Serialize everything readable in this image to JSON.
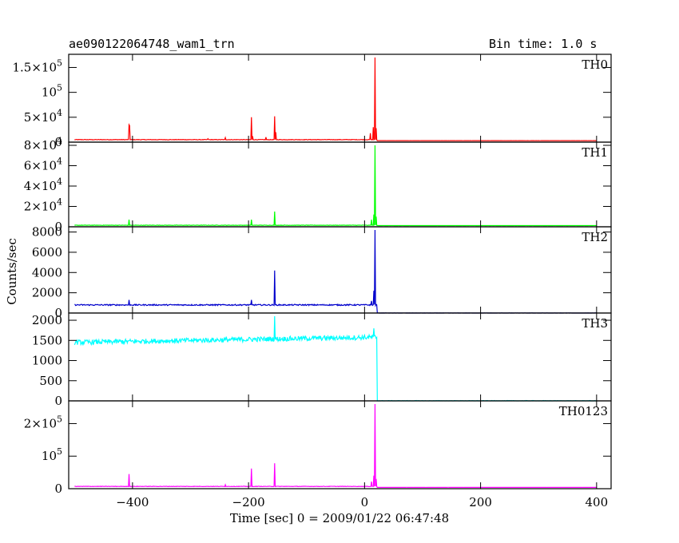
{
  "header": {
    "title": "ae090122064748_wam1_trn",
    "bin_time": "Bin time: 1.0 s"
  },
  "axes": {
    "xlabel": "Time [sec] 0 = 2009/01/22 06:47:48",
    "ylabel": "Counts/sec"
  },
  "colors": {
    "TH0": "#ff0000",
    "TH1": "#00ff00",
    "TH2": "#0000cc",
    "TH3": "#00ffff",
    "TH0123": "#ff00ff",
    "axes": "#000000"
  },
  "chart_data": {
    "type": "line",
    "xlabel": "Time [sec] 0 = 2009/01/22 06:47:48",
    "ylabel": "Counts/sec",
    "xlim": [
      -510,
      425
    ],
    "x_ticks": [
      -400,
      -200,
      0,
      200,
      400
    ],
    "panels": [
      {
        "name": "TH0",
        "color": "#ff0000",
        "ylim": [
          0,
          170000
        ],
        "y_ticks": [
          {
            "value": 0,
            "label": "0"
          },
          {
            "value": 50000,
            "label": "5×10",
            "exp": "4"
          },
          {
            "value": 100000,
            "label": "10",
            "exp": "5"
          },
          {
            "value": 150000,
            "label": "1.5×10",
            "exp": "5"
          }
        ],
        "baseline_before": 5000,
        "baseline_after": 3000,
        "noise": 500,
        "spikes": [
          {
            "t": -406,
            "v": 35000
          },
          {
            "t": -405,
            "v": 33000
          },
          {
            "t": -240,
            "v": 9000
          },
          {
            "t": -270,
            "v": 7000
          },
          {
            "t": -195,
            "v": 50000
          },
          {
            "t": -193,
            "v": 12000
          },
          {
            "t": -170,
            "v": 10000
          },
          {
            "t": -155,
            "v": 52000
          },
          {
            "t": -153,
            "v": 20000
          },
          {
            "t": 10,
            "v": 18000
          },
          {
            "t": 15,
            "v": 30000
          },
          {
            "t": 18,
            "v": 170000
          },
          {
            "t": 20,
            "v": 28000
          }
        ]
      },
      {
        "name": "TH1",
        "color": "#00ff00",
        "ylim": [
          0,
          80000
        ],
        "y_ticks": [
          {
            "value": 0,
            "label": "0"
          },
          {
            "value": 20000,
            "label": "2×10",
            "exp": "4"
          },
          {
            "value": 40000,
            "label": "4×10",
            "exp": "4"
          },
          {
            "value": 60000,
            "label": "6×10",
            "exp": "4"
          },
          {
            "value": 80000,
            "label": "8×10",
            "exp": "4"
          }
        ],
        "baseline_before": 1500,
        "baseline_after": 1200,
        "noise": 200,
        "spikes": [
          {
            "t": -406,
            "v": 7000
          },
          {
            "t": -195,
            "v": 7000
          },
          {
            "t": -155,
            "v": 15000
          },
          {
            "t": 12,
            "v": 7000
          },
          {
            "t": 16,
            "v": 12000
          },
          {
            "t": 18,
            "v": 80000
          },
          {
            "t": 20,
            "v": 10000
          }
        ]
      },
      {
        "name": "TH2",
        "color": "#0000cc",
        "ylim": [
          0,
          8200
        ],
        "y_ticks": [
          {
            "value": 0,
            "label": "0"
          },
          {
            "value": 2000,
            "label": "2000"
          },
          {
            "value": 4000,
            "label": "4000"
          },
          {
            "value": 6000,
            "label": "6000"
          },
          {
            "value": 8000,
            "label": "8000"
          }
        ],
        "baseline_before": 800,
        "baseline_after": 0,
        "noise": 60,
        "spikes": [
          {
            "t": -406,
            "v": 1300
          },
          {
            "t": -195,
            "v": 1300
          },
          {
            "t": -155,
            "v": 4200
          },
          {
            "t": 12,
            "v": 1200
          },
          {
            "t": 16,
            "v": 2200
          },
          {
            "t": 18,
            "v": 8200
          }
        ]
      },
      {
        "name": "TH3",
        "color": "#00ffff",
        "ylim": [
          0,
          2100
        ],
        "y_ticks": [
          {
            "value": 0,
            "label": "0"
          },
          {
            "value": 500,
            "label": "500"
          },
          {
            "value": 1000,
            "label": "1000"
          },
          {
            "value": 1500,
            "label": "1500"
          },
          {
            "value": 2000,
            "label": "2000"
          }
        ],
        "baseline_before": 1450,
        "baseline_before_end": 1580,
        "baseline_after": 0,
        "noise": 60,
        "spikes": [
          {
            "t": -155,
            "v": 2100
          },
          {
            "t": 16,
            "v": 1800
          }
        ]
      },
      {
        "name": "TH0123",
        "color": "#ff00ff",
        "ylim": [
          0,
          260000
        ],
        "y_ticks": [
          {
            "value": 0,
            "label": "0"
          },
          {
            "value": 100000,
            "label": "10",
            "exp": "5"
          },
          {
            "value": 200000,
            "label": "2×10",
            "exp": "5"
          }
        ],
        "baseline_before": 7000,
        "baseline_after": 4000,
        "noise": 700,
        "spikes": [
          {
            "t": -406,
            "v": 45000
          },
          {
            "t": -240,
            "v": 12000
          },
          {
            "t": -195,
            "v": 62000
          },
          {
            "t": -155,
            "v": 78000
          },
          {
            "t": 12,
            "v": 22000
          },
          {
            "t": 16,
            "v": 40000
          },
          {
            "t": 18,
            "v": 260000
          },
          {
            "t": 20,
            "v": 30000
          }
        ]
      }
    ]
  }
}
